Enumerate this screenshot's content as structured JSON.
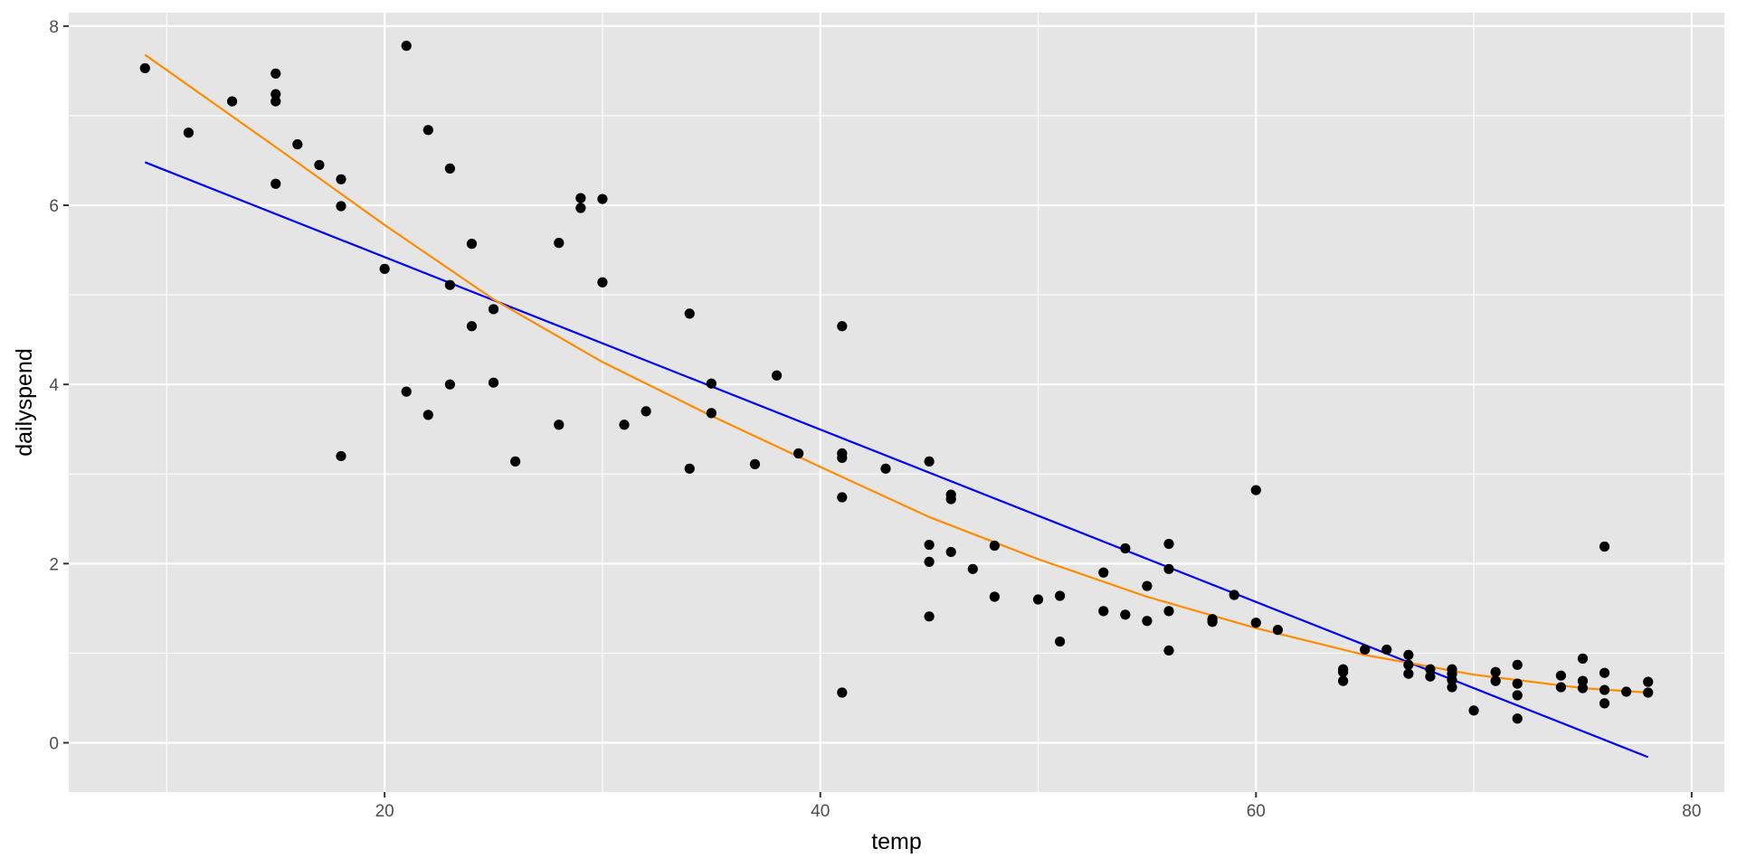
{
  "colors": {
    "panel_background": "#e5e5e5",
    "grid": "#ffffff",
    "points": "#000000",
    "linear_fit": "#0000ff",
    "curve_fit": "#ff8c00",
    "tick_text": "#4d4d4d"
  },
  "chart_data": {
    "type": "scatter",
    "title": "",
    "xlabel": "temp",
    "ylabel": "dailyspend",
    "xlim": [
      5.5,
      81.5
    ],
    "ylim": [
      -0.55,
      8.15
    ],
    "x_ticks": [
      20,
      40,
      60,
      80
    ],
    "y_ticks": [
      0,
      2,
      4,
      6,
      8
    ],
    "x_minor_ticks": [
      10,
      30,
      50,
      70
    ],
    "y_minor_ticks": [
      1,
      3,
      5,
      7
    ],
    "grid": true,
    "legend": "none",
    "points": [
      {
        "x": 9,
        "y": 7.53
      },
      {
        "x": 11,
        "y": 6.81
      },
      {
        "x": 13,
        "y": 7.16
      },
      {
        "x": 15,
        "y": 7.47
      },
      {
        "x": 15,
        "y": 7.24
      },
      {
        "x": 15,
        "y": 7.16
      },
      {
        "x": 15,
        "y": 6.24
      },
      {
        "x": 16,
        "y": 6.68
      },
      {
        "x": 17,
        "y": 6.45
      },
      {
        "x": 18,
        "y": 6.29
      },
      {
        "x": 18,
        "y": 5.99
      },
      {
        "x": 18,
        "y": 3.2
      },
      {
        "x": 20,
        "y": 5.29
      },
      {
        "x": 21,
        "y": 7.78
      },
      {
        "x": 21,
        "y": 3.92
      },
      {
        "x": 22,
        "y": 6.84
      },
      {
        "x": 22,
        "y": 3.66
      },
      {
        "x": 23,
        "y": 6.41
      },
      {
        "x": 23,
        "y": 5.11
      },
      {
        "x": 23,
        "y": 4.0
      },
      {
        "x": 24,
        "y": 5.57
      },
      {
        "x": 24,
        "y": 4.65
      },
      {
        "x": 25,
        "y": 4.84
      },
      {
        "x": 25,
        "y": 4.02
      },
      {
        "x": 26,
        "y": 3.14
      },
      {
        "x": 28,
        "y": 5.58
      },
      {
        "x": 28,
        "y": 3.55
      },
      {
        "x": 29,
        "y": 6.08
      },
      {
        "x": 29,
        "y": 5.97
      },
      {
        "x": 30,
        "y": 6.07
      },
      {
        "x": 30,
        "y": 5.14
      },
      {
        "x": 31,
        "y": 3.55
      },
      {
        "x": 32,
        "y": 3.7
      },
      {
        "x": 34,
        "y": 4.79
      },
      {
        "x": 34,
        "y": 3.06
      },
      {
        "x": 35,
        "y": 4.01
      },
      {
        "x": 35,
        "y": 3.68
      },
      {
        "x": 37,
        "y": 3.11
      },
      {
        "x": 38,
        "y": 4.1
      },
      {
        "x": 39,
        "y": 3.23
      },
      {
        "x": 41,
        "y": 4.65
      },
      {
        "x": 41,
        "y": 3.23
      },
      {
        "x": 41,
        "y": 3.18
      },
      {
        "x": 41,
        "y": 2.74
      },
      {
        "x": 41,
        "y": 0.56
      },
      {
        "x": 43,
        "y": 3.06
      },
      {
        "x": 45,
        "y": 3.14
      },
      {
        "x": 45,
        "y": 2.21
      },
      {
        "x": 45,
        "y": 2.02
      },
      {
        "x": 45,
        "y": 1.41
      },
      {
        "x": 46,
        "y": 2.77
      },
      {
        "x": 46,
        "y": 2.72
      },
      {
        "x": 46,
        "y": 2.13
      },
      {
        "x": 47,
        "y": 1.94
      },
      {
        "x": 48,
        "y": 2.2
      },
      {
        "x": 48,
        "y": 1.63
      },
      {
        "x": 50,
        "y": 1.6
      },
      {
        "x": 51,
        "y": 1.64
      },
      {
        "x": 51,
        "y": 1.13
      },
      {
        "x": 53,
        "y": 1.9
      },
      {
        "x": 53,
        "y": 1.47
      },
      {
        "x": 54,
        "y": 2.17
      },
      {
        "x": 54,
        "y": 1.43
      },
      {
        "x": 55,
        "y": 1.75
      },
      {
        "x": 55,
        "y": 1.36
      },
      {
        "x": 56,
        "y": 2.22
      },
      {
        "x": 56,
        "y": 1.94
      },
      {
        "x": 56,
        "y": 1.47
      },
      {
        "x": 56,
        "y": 1.03
      },
      {
        "x": 58,
        "y": 1.38
      },
      {
        "x": 58,
        "y": 1.35
      },
      {
        "x": 59,
        "y": 1.65
      },
      {
        "x": 60,
        "y": 2.82
      },
      {
        "x": 60,
        "y": 1.34
      },
      {
        "x": 61,
        "y": 1.26
      },
      {
        "x": 64,
        "y": 0.82
      },
      {
        "x": 64,
        "y": 0.79
      },
      {
        "x": 64,
        "y": 0.69
      },
      {
        "x": 65,
        "y": 1.04
      },
      {
        "x": 66,
        "y": 1.04
      },
      {
        "x": 67,
        "y": 0.98
      },
      {
        "x": 67,
        "y": 0.87
      },
      {
        "x": 67,
        "y": 0.77
      },
      {
        "x": 68,
        "y": 0.82
      },
      {
        "x": 68,
        "y": 0.74
      },
      {
        "x": 69,
        "y": 0.82
      },
      {
        "x": 69,
        "y": 0.77
      },
      {
        "x": 69,
        "y": 0.7
      },
      {
        "x": 69,
        "y": 0.62
      },
      {
        "x": 70,
        "y": 0.36
      },
      {
        "x": 71,
        "y": 0.79
      },
      {
        "x": 71,
        "y": 0.69
      },
      {
        "x": 72,
        "y": 0.87
      },
      {
        "x": 72,
        "y": 0.66
      },
      {
        "x": 72,
        "y": 0.53
      },
      {
        "x": 72,
        "y": 0.27
      },
      {
        "x": 74,
        "y": 0.75
      },
      {
        "x": 74,
        "y": 0.62
      },
      {
        "x": 75,
        "y": 0.94
      },
      {
        "x": 75,
        "y": 0.69
      },
      {
        "x": 75,
        "y": 0.61
      },
      {
        "x": 76,
        "y": 2.19
      },
      {
        "x": 76,
        "y": 0.78
      },
      {
        "x": 76,
        "y": 0.59
      },
      {
        "x": 76,
        "y": 0.44
      },
      {
        "x": 77,
        "y": 0.57
      },
      {
        "x": 78,
        "y": 0.68
      },
      {
        "x": 78,
        "y": 0.56
      }
    ],
    "lines": [
      {
        "kind": "linear fit",
        "color": "#0000ff",
        "x": [
          9,
          78
        ],
        "y": [
          6.48,
          -0.16
        ]
      },
      {
        "kind": "curve fit",
        "color": "#ff8c00",
        "x": [
          9,
          15,
          20,
          25,
          30,
          35,
          40,
          45,
          50,
          55,
          60,
          65,
          70,
          75,
          78
        ],
        "y": [
          7.68,
          6.65,
          5.78,
          4.95,
          4.25,
          3.65,
          3.08,
          2.52,
          2.05,
          1.63,
          1.28,
          0.98,
          0.76,
          0.61,
          0.56
        ]
      }
    ]
  }
}
